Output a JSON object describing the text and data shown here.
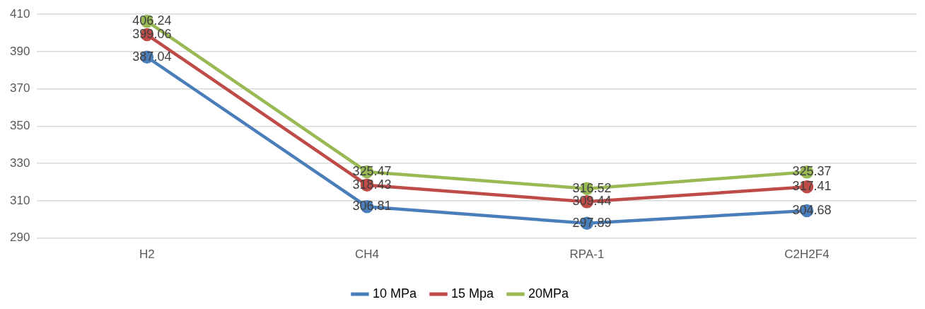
{
  "chart_data": {
    "type": "line",
    "categories": [
      "H2",
      "CH4",
      "RPA-1",
      "C2H2F4"
    ],
    "series": [
      {
        "name": "10 MPa",
        "color": "#4a7ebb",
        "values": [
          387.04,
          306.81,
          297.89,
          304.68
        ]
      },
      {
        "name": "15 Mpa",
        "color": "#be4b48",
        "values": [
          399.06,
          318.43,
          309.44,
          317.41
        ]
      },
      {
        "name": "20MPa",
        "color": "#98b954",
        "values": [
          406.24,
          325.47,
          316.52,
          325.37
        ]
      }
    ],
    "ylim": [
      290,
      410
    ],
    "yticks": [
      290,
      310,
      330,
      350,
      370,
      390,
      410
    ],
    "grid": "y",
    "legend": "bottom",
    "marker": "circle",
    "line_style": "solid",
    "data_labels": true
  }
}
